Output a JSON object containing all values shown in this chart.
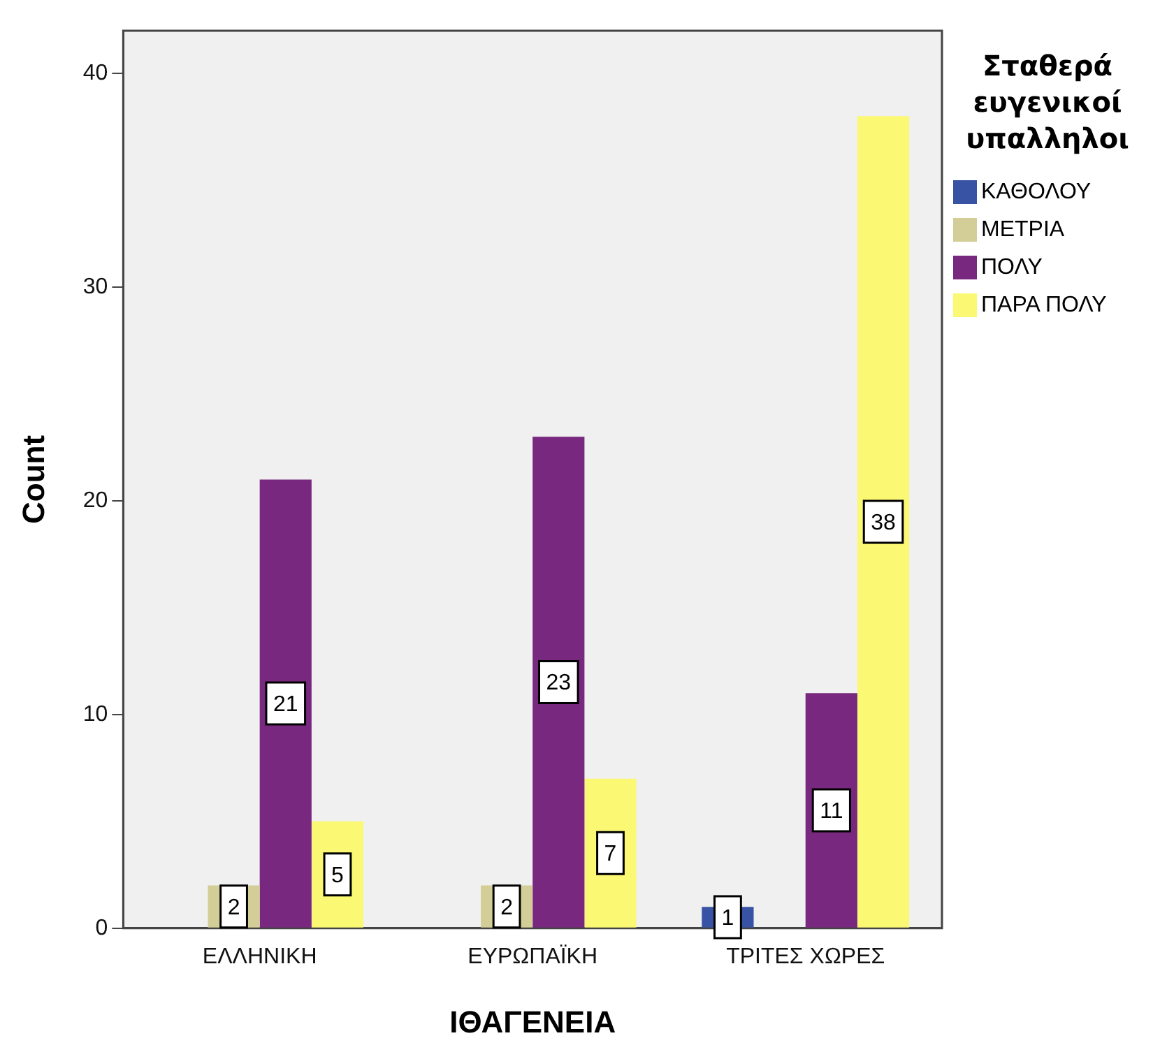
{
  "chart_data": {
    "type": "bar",
    "xlabel": "ΙΘΑΓΕΝΕΙΑ",
    "ylabel": "Count",
    "legend_title": "Σταθερά ευγενικοί υπαλληλοι",
    "categories": [
      "ΕΛΛΗΝΙΚΗ",
      "ΕΥΡΩΠΑΪΚΗ",
      "ΤΡΙΤΕΣ ΧΩΡΕΣ"
    ],
    "series": [
      {
        "name": "ΚΑΘΟΛΟΥ",
        "color": "#3953a4",
        "values": [
          null,
          null,
          1
        ]
      },
      {
        "name": "ΜΕΤΡΙΑ",
        "color": "#d3ce97",
        "values": [
          2,
          2,
          null
        ]
      },
      {
        "name": "ΠΟΛΥ",
        "color": "#79287f",
        "values": [
          21,
          23,
          11
        ]
      },
      {
        "name": "ΠΑΡΑ ΠΟΛΥ",
        "color": "#fbf873",
        "values": [
          5,
          7,
          38
        ]
      }
    ],
    "ylim": [
      0,
      42
    ],
    "yticks": [
      0,
      10,
      20,
      30,
      40
    ],
    "grid": false,
    "legend": "top right",
    "data_labels": true
  }
}
